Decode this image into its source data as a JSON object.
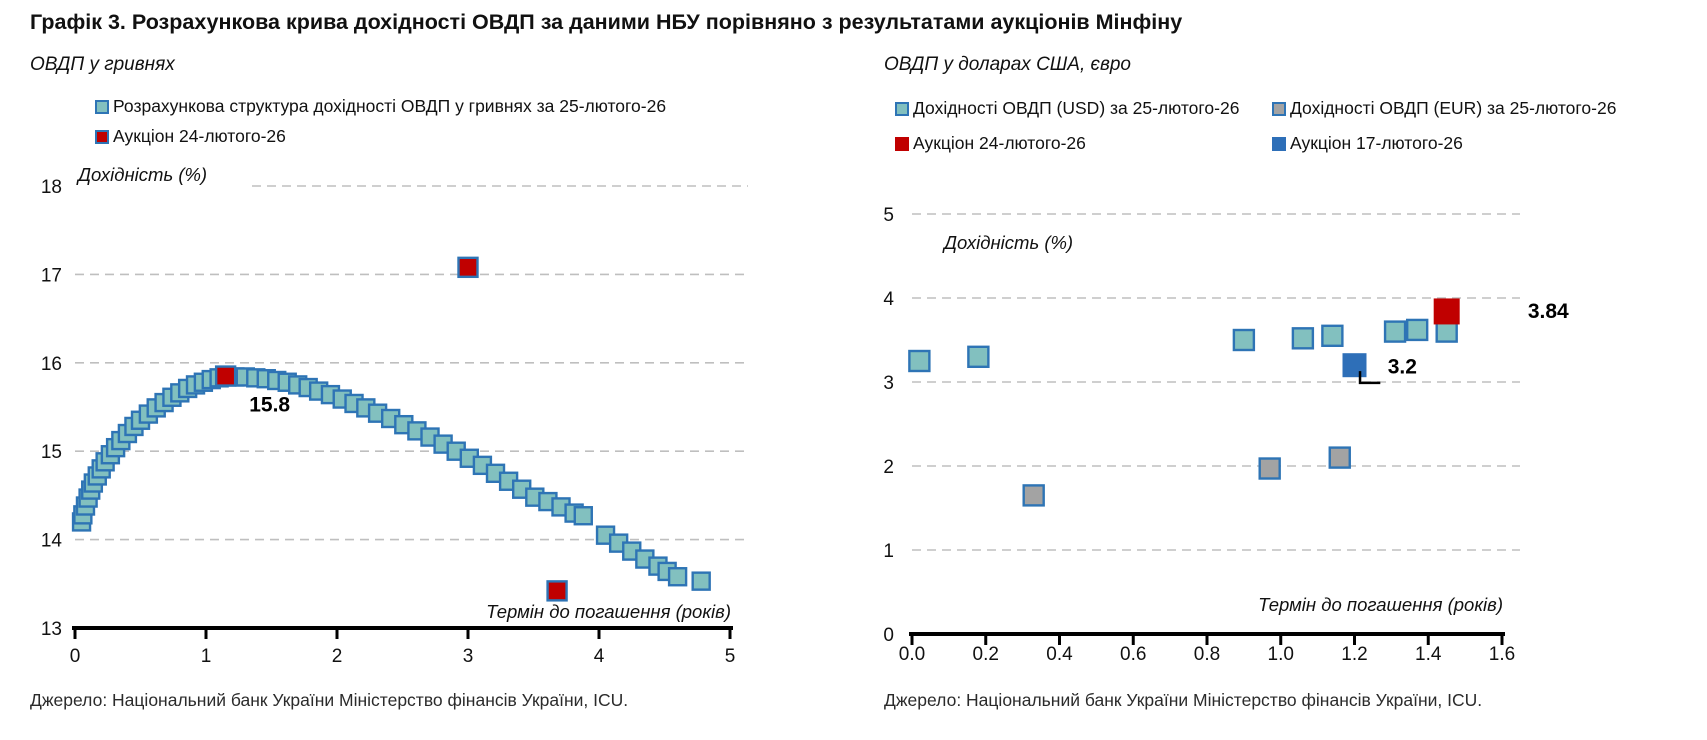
{
  "page": {
    "title": "Графік 3. Розрахункова крива дохідності ОВДП за даними НБУ порівняно з результатами аукціонів Мінфіну"
  },
  "chart_data": [
    {
      "type": "scatter",
      "subtitle": "ОВДП у гривнях",
      "xlabel": "Термін до погашення (років)",
      "ylabel": "Дохідність (%)",
      "xlim": [
        0,
        5
      ],
      "ylim": [
        13,
        18
      ],
      "xticks": [
        0,
        1,
        2,
        3,
        4,
        5
      ],
      "xtick_labels": [
        "0",
        "1",
        "2",
        "3",
        "4",
        "5"
      ],
      "yticks": [
        13,
        14,
        15,
        16,
        17,
        18
      ],
      "grid": "horizontal-dashed",
      "legend_position": "top",
      "source": "Джерело: Національний банк України Міністерство фінансів України, ICU.",
      "series": [
        {
          "name": "Розрахункова структура дохідності ОВДП у гривнях за 25-лютого-26",
          "marker": "square",
          "marker_size": 17,
          "color": "#82C0BF",
          "border": "#2E74B5",
          "points": [
            [
              0.05,
              14.2
            ],
            [
              0.06,
              14.28
            ],
            [
              0.08,
              14.38
            ],
            [
              0.1,
              14.47
            ],
            [
              0.12,
              14.56
            ],
            [
              0.14,
              14.64
            ],
            [
              0.17,
              14.72
            ],
            [
              0.2,
              14.8
            ],
            [
              0.23,
              14.88
            ],
            [
              0.27,
              14.96
            ],
            [
              0.31,
              15.04
            ],
            [
              0.35,
              15.12
            ],
            [
              0.4,
              15.2
            ],
            [
              0.45,
              15.28
            ],
            [
              0.5,
              15.35
            ],
            [
              0.56,
              15.42
            ],
            [
              0.62,
              15.49
            ],
            [
              0.68,
              15.55
            ],
            [
              0.74,
              15.61
            ],
            [
              0.8,
              15.66
            ],
            [
              0.86,
              15.71
            ],
            [
              0.92,
              15.75
            ],
            [
              0.98,
              15.78
            ],
            [
              1.04,
              15.81
            ],
            [
              1.1,
              15.83
            ],
            [
              1.22,
              15.84
            ],
            [
              1.3,
              15.84
            ],
            [
              1.38,
              15.83
            ],
            [
              1.46,
              15.82
            ],
            [
              1.54,
              15.8
            ],
            [
              1.62,
              15.78
            ],
            [
              1.7,
              15.75
            ],
            [
              1.78,
              15.72
            ],
            [
              1.86,
              15.68
            ],
            [
              1.95,
              15.64
            ],
            [
              2.04,
              15.59
            ],
            [
              2.13,
              15.54
            ],
            [
              2.22,
              15.49
            ],
            [
              2.31,
              15.43
            ],
            [
              2.41,
              15.37
            ],
            [
              2.51,
              15.3
            ],
            [
              2.61,
              15.23
            ],
            [
              2.71,
              15.16
            ],
            [
              2.81,
              15.08
            ],
            [
              2.91,
              15.0
            ],
            [
              3.01,
              14.92
            ],
            [
              3.11,
              14.84
            ],
            [
              3.21,
              14.75
            ],
            [
              3.31,
              14.66
            ],
            [
              3.41,
              14.57
            ],
            [
              3.51,
              14.48
            ],
            [
              3.61,
              14.43
            ],
            [
              3.71,
              14.37
            ],
            [
              3.81,
              14.3
            ],
            [
              3.88,
              14.27
            ],
            [
              4.05,
              14.05
            ],
            [
              4.15,
              13.96
            ],
            [
              4.25,
              13.87
            ],
            [
              4.35,
              13.78
            ],
            [
              4.45,
              13.7
            ],
            [
              4.52,
              13.64
            ],
            [
              4.6,
              13.58
            ],
            [
              4.78,
              13.53
            ]
          ]
        },
        {
          "name": "Аукціон 24-лютого-26",
          "marker": "square",
          "marker_size": 19,
          "color": "#C00000",
          "border": "#2E74B5",
          "points": [
            [
              1.15,
              15.85
            ],
            [
              3.0,
              17.08
            ],
            [
              3.68,
              13.42
            ]
          ]
        }
      ],
      "annotations": [
        {
          "text": "15.8",
          "x": 1.33,
          "y": 15.45,
          "anchor": "start"
        }
      ]
    },
    {
      "type": "scatter",
      "subtitle": "ОВДП у доларах США, євро",
      "xlabel": "Термін до погашення (років)",
      "ylabel": "Дохідність (%)",
      "xlim": [
        0,
        1.6
      ],
      "ylim": [
        0,
        5
      ],
      "xticks": [
        0,
        0.2,
        0.4,
        0.6,
        0.8,
        1.0,
        1.2,
        1.4,
        1.6
      ],
      "xtick_labels": [
        "0.0",
        "0.2",
        "0.4",
        "0.6",
        "0.8",
        "1.0",
        "1.2",
        "1.4",
        "1.6"
      ],
      "yticks": [
        0,
        1,
        2,
        3,
        4,
        5
      ],
      "grid": "horizontal-dashed",
      "legend_position": "top",
      "source": "Джерело: Національний банк України Міністерство фінансів України, ICU.",
      "series": [
        {
          "name": "Дохідності ОВДП (USD) за 25-лютого-26",
          "marker": "square",
          "marker_size": 20,
          "color": "#82C0BF",
          "border": "#2E74B5",
          "points": [
            [
              0.02,
              3.25
            ],
            [
              0.18,
              3.3
            ],
            [
              0.9,
              3.5
            ],
            [
              1.06,
              3.52
            ],
            [
              1.14,
              3.55
            ],
            [
              1.31,
              3.6
            ],
            [
              1.37,
              3.62
            ],
            [
              1.45,
              3.6
            ]
          ]
        },
        {
          "name": "Дохідності ОВДП (EUR) за 25-лютого-26",
          "marker": "square",
          "marker_size": 20,
          "color": "#A3A3A3",
          "border": "#2E74B5",
          "points": [
            [
              0.33,
              1.65
            ],
            [
              0.97,
              1.97
            ],
            [
              1.16,
              2.1
            ]
          ]
        },
        {
          "name": "Аукціон 24-лютого-26",
          "marker": "square",
          "marker_size": 26,
          "color": "#C00000",
          "points": [
            [
              1.45,
              3.84
            ]
          ]
        },
        {
          "name": "Аукціон 17-лютого-26",
          "marker": "square",
          "marker_size": 24,
          "color": "#2E6FB8",
          "points": [
            [
              1.2,
              3.2
            ]
          ]
        }
      ],
      "annotations": [
        {
          "text": "3.84",
          "x": 1.67,
          "y": 3.76,
          "anchor": "start"
        },
        {
          "text": "3.2",
          "x": 1.29,
          "y": 3.1,
          "anchor": "start"
        }
      ],
      "leaders": [
        [
          [
            1.215,
            3.13
          ],
          [
            1.215,
            2.99
          ],
          [
            1.27,
            2.99
          ]
        ]
      ]
    }
  ]
}
